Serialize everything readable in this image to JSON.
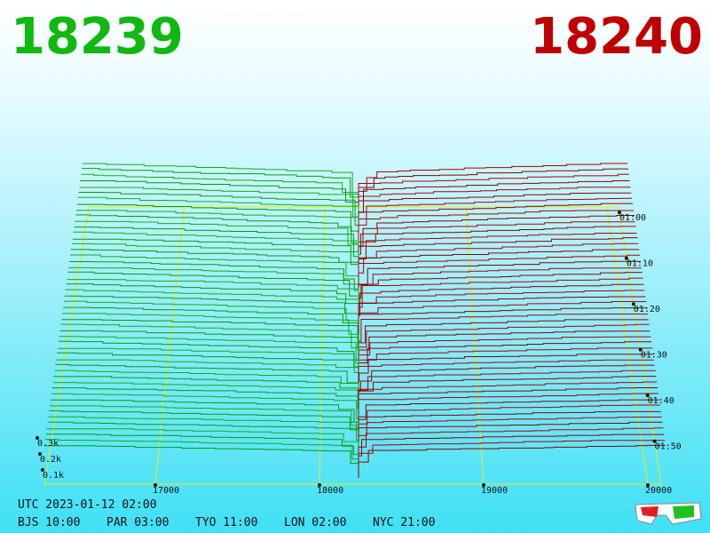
{
  "header": {
    "bid": "18239",
    "ask": "18240"
  },
  "price_axis": [
    "17000",
    "18000",
    "19000",
    "20000"
  ],
  "depth_axis": [
    "0.3k",
    "0.2k",
    "0.1k"
  ],
  "time_axis": [
    "01:00",
    "01:10",
    "01:20",
    "01:30",
    "01:40",
    "01:50"
  ],
  "clock": {
    "utc": "UTC 2023-01-12 02:00",
    "zones": [
      "BJS 10:00",
      "PAR 03:00",
      "TYO 11:00",
      "LON 02:00",
      "NYC 21:00"
    ]
  }
}
